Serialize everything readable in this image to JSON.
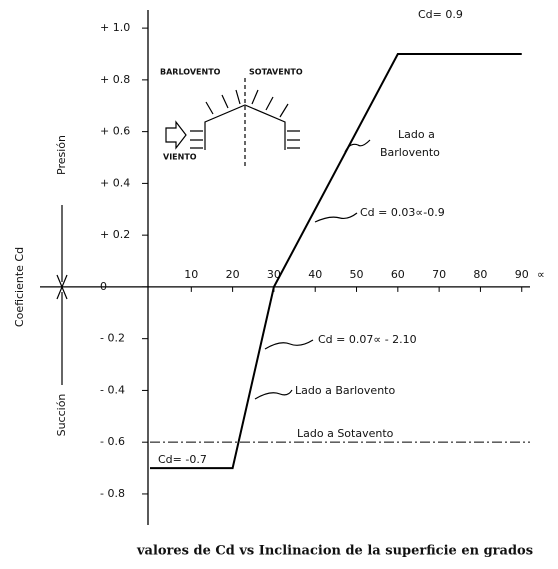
{
  "chart_data": {
    "type": "line",
    "x": [
      0,
      20,
      30,
      60,
      90
    ],
    "series": [
      {
        "color": "#000000",
        "values": [
          -0.7,
          -0.7,
          0,
          0.9,
          0.9
        ]
      }
    ],
    "xlim": [
      0,
      92
    ],
    "xticks": [
      10,
      20,
      30,
      40,
      50,
      60,
      70,
      80,
      90
    ],
    "x_label": "∝",
    "ylim": [
      -0.92,
      1.07
    ],
    "yticks": [
      {
        "value": 1,
        "label": "+ 1.0"
      },
      {
        "value": 0.8,
        "label": "+ 0.8"
      },
      {
        "value": 0.6,
        "label": "+ 0.6"
      },
      {
        "value": 0.4,
        "label": "+ 0.4"
      },
      {
        "value": 0.2,
        "label": "+ 0.2"
      },
      0,
      {
        "value": -0.2,
        "label": "- 0.2"
      },
      {
        "value": -0.4,
        "label": "- 0.4"
      },
      {
        "value": -0.6,
        "label": "- 0.6"
      },
      {
        "value": -0.8,
        "label": "- 0.8"
      }
    ],
    "y_label": "Coeficiente Cd",
    "region_labels": [
      "Presión",
      "Succión"
    ],
    "reference_lines": [
      {
        "value": -0.6,
        "label": "Lado a Sotavento"
      }
    ],
    "annotations": [
      "Cd= 0.9",
      [
        "Lado a",
        "Barlovento"
      ],
      "Cd = 0.03∝-0.9",
      "Cd = 0.07∝ - 2.10",
      "Lado a Barlovento",
      "Cd= -0.7"
    ],
    "inset_labels": [
      "BARLOVENTO",
      "SOTAVENTO",
      "VIENTO"
    ],
    "caption": "valores de Cd vs Inclinacion de la superficie en grados"
  }
}
